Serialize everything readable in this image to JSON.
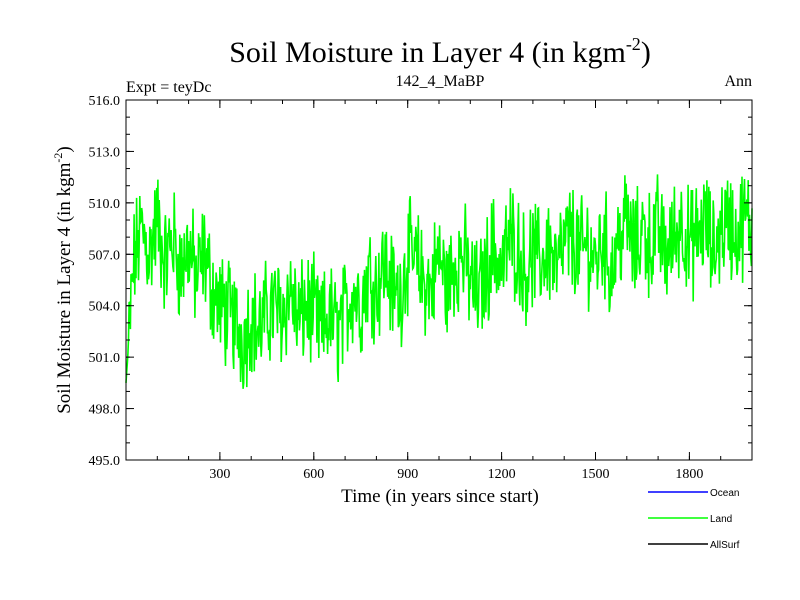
{
  "chart_data": {
    "type": "line",
    "title": "Soil Moisture in Layer 4 (in kgm",
    "title_sup": "-2",
    "title_close": ")",
    "subtitle_left": "Expt = teyDc",
    "subtitle_center": "142_4_MaBP",
    "subtitle_right": "Ann",
    "xlabel": "Time (in years since start)",
    "ylabel": "Soil Moisture in Layer 4 (in kgm",
    "ylabel_sup": "-2",
    "ylabel_close": ")",
    "xlim": [
      0,
      2000
    ],
    "ylim": [
      495,
      516
    ],
    "x_ticks": [
      300,
      600,
      900,
      1200,
      1500,
      1800
    ],
    "x_tick_labels": [
      "300",
      "600",
      "900",
      "1200",
      "1500",
      "1800"
    ],
    "y_ticks": [
      495,
      498,
      501,
      504,
      507,
      510,
      513,
      516
    ],
    "y_tick_labels": [
      "495.0",
      "498.0",
      "501.0",
      "504.0",
      "507.0",
      "510.0",
      "513.0",
      "516.0"
    ],
    "legend": [
      {
        "name": "Ocean",
        "color": "#0000ff"
      },
      {
        "name": "Land",
        "color": "#00ff00"
      },
      {
        "name": "AllSurf",
        "color": "#000000"
      }
    ],
    "series": [
      {
        "name": "Land",
        "color": "#00ff00",
        "x": [
          0,
          25,
          50,
          75,
          100,
          125,
          150,
          175,
          200,
          225,
          250,
          275,
          300,
          325,
          350,
          375,
          400,
          425,
          450,
          475,
          500,
          525,
          550,
          575,
          600,
          625,
          650,
          675,
          700,
          725,
          750,
          775,
          800,
          825,
          850,
          875,
          900,
          925,
          950,
          975,
          1000,
          1025,
          1050,
          1075,
          1100,
          1125,
          1150,
          1175,
          1200,
          1225,
          1250,
          1275,
          1300,
          1325,
          1350,
          1375,
          1400,
          1425,
          1450,
          1475,
          1500,
          1525,
          1550,
          1575,
          1600,
          1625,
          1650,
          1675,
          1700,
          1725,
          1750,
          1775,
          1800,
          1825,
          1850,
          1875,
          1900,
          1925,
          1950,
          1975,
          2000
        ],
        "values": [
          499.5,
          506.5,
          508.5,
          507.0,
          509.0,
          506.5,
          508.0,
          506.0,
          507.5,
          505.5,
          507.0,
          505.0,
          504.0,
          503.5,
          503.0,
          502.0,
          503.5,
          502.5,
          503.5,
          504.0,
          503.5,
          505.0,
          503.0,
          504.0,
          503.5,
          502.5,
          503.5,
          502.5,
          503.5,
          505.0,
          504.0,
          506.0,
          505.0,
          506.5,
          505.0,
          504.5,
          507.0,
          506.5,
          505.5,
          505.0,
          507.0,
          505.0,
          506.5,
          507.0,
          505.5,
          504.5,
          506.0,
          507.5,
          506.0,
          508.0,
          507.5,
          506.0,
          507.0,
          506.5,
          507.5,
          506.0,
          507.5,
          508.0,
          507.0,
          507.5,
          506.5,
          508.0,
          506.0,
          508.0,
          509.0,
          507.0,
          508.5,
          507.5,
          508.5,
          507.0,
          508.0,
          509.0,
          507.5,
          508.0,
          509.0,
          507.0,
          508.5,
          509.0,
          508.0,
          509.0,
          508.5
        ]
      }
    ]
  }
}
